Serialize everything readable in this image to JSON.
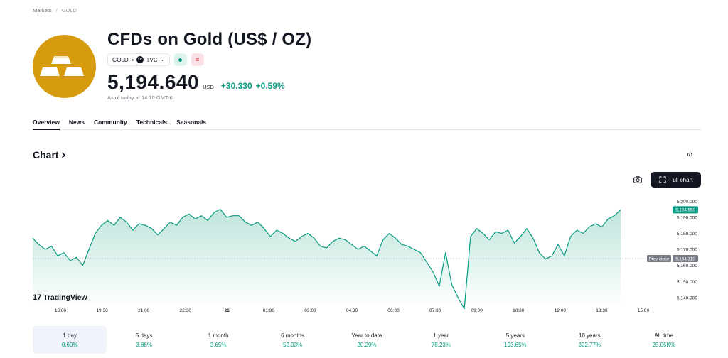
{
  "breadcrumb": {
    "root": "Markets",
    "current": "GOLD"
  },
  "header": {
    "title": "CFDs on Gold (US$ / OZ)",
    "symbol": "GOLD",
    "exchange": "TVC",
    "price": "5,194.640",
    "currency": "USD",
    "change": "+30.330",
    "change_pct": "+0.59%",
    "as_of": "As of today at 14:10 GMT-6"
  },
  "tabs": [
    "Overview",
    "News",
    "Community",
    "Technicals",
    "Seasonals"
  ],
  "chart_section": {
    "heading": "Chart",
    "full_chart_label": "Full chart",
    "watermark": "TradingView"
  },
  "chart_data": {
    "type": "area",
    "x_ticks": [
      "18:00",
      "19:30",
      "21:00",
      "22:30",
      "26",
      "01:30",
      "03:00",
      "04:30",
      "06:00",
      "07:30",
      "09:00",
      "10:30",
      "12:00",
      "13:30",
      "15:00"
    ],
    "y_ticks": [
      "5,200.000",
      "5,190.000",
      "5,180.000",
      "5,170.000",
      "5,160.000",
      "5,150.000",
      "5,140.000"
    ],
    "ylim": [
      5136,
      5205
    ],
    "last_price_label": "5,194.650",
    "prev_close_label": "Prev close",
    "prev_close_value_label": "5,164.310",
    "prev_close": 5164.31,
    "series": [
      {
        "values": [
          5177,
          5173,
          5170,
          5172,
          5166,
          5168,
          5163,
          5165,
          5160,
          5170,
          5180,
          5185,
          5188,
          5185,
          5190,
          5187,
          5182,
          5186,
          5185,
          5183,
          5179,
          5183,
          5187,
          5185,
          5190,
          5192,
          5189,
          5191,
          5188,
          5193,
          5195,
          5190,
          5191,
          5191,
          5187,
          5185,
          5187,
          5183,
          5178,
          5182,
          5180,
          5177,
          5175,
          5178,
          5180,
          5177,
          5172,
          5171,
          5175,
          5177,
          5176,
          5173,
          5170,
          5172,
          5169,
          5166,
          5176,
          5180,
          5177,
          5173,
          5172,
          5170,
          5168,
          5162,
          5156,
          5147,
          5168,
          5148,
          5140,
          5133,
          5178,
          5183,
          5180,
          5176,
          5181,
          5180,
          5182,
          5174,
          5178,
          5183,
          5177,
          5168,
          5164,
          5166,
          5173,
          5166,
          5178,
          5182,
          5180,
          5184,
          5186,
          5184,
          5189,
          5191,
          5194.65
        ]
      }
    ]
  },
  "periods": [
    {
      "label": "1 day",
      "value": "0.60%"
    },
    {
      "label": "5 days",
      "value": "3.86%"
    },
    {
      "label": "1 month",
      "value": "3.65%"
    },
    {
      "label": "6 months",
      "value": "52.03%"
    },
    {
      "label": "Year to date",
      "value": "20.29%"
    },
    {
      "label": "1 year",
      "value": "78.23%"
    },
    {
      "label": "5 years",
      "value": "193.65%"
    },
    {
      "label": "10 years",
      "value": "322.77%"
    },
    {
      "label": "All time",
      "value": "25.05K%"
    }
  ],
  "colors": {
    "up": "#089981",
    "logo": "#d69b0e",
    "area_top": "#bfe5dc",
    "area_bottom": "#ffffff"
  },
  "icons": [
    "gold-bars-icon",
    "tv-logo-icon",
    "chevron-down-icon",
    "camera-icon",
    "fullscreen-icon",
    "code-icon",
    "chevron-right-icon"
  ]
}
